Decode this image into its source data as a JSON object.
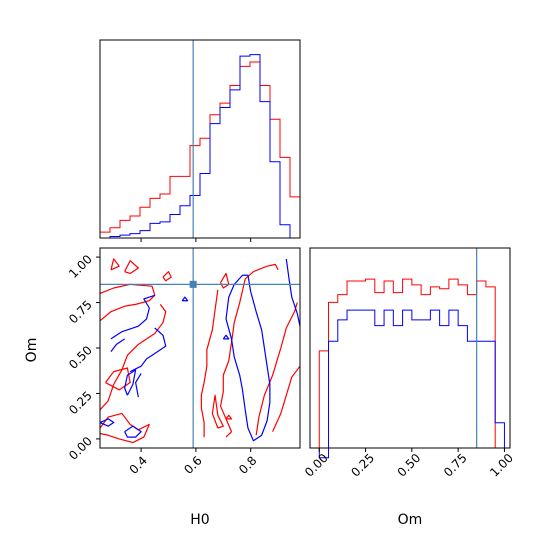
{
  "chart_data": {
    "type": "corner",
    "parameters": [
      "H0",
      "Om"
    ],
    "truth": {
      "H0": 0.59,
      "Om": 0.85
    },
    "colors": {
      "red": "#ff0000",
      "blue": "#0000ff",
      "truth": "#4682b4",
      "axis": "#000000"
    },
    "panels": {
      "h0_hist": {
        "xlim": [
          0.25,
          0.98
        ],
        "bin_edges": [
          0.25,
          0.2865,
          0.323,
          0.3595,
          0.396,
          0.4325,
          0.469,
          0.5055,
          0.542,
          0.5785,
          0.615,
          0.6515,
          0.688,
          0.7245,
          0.761,
          0.7975,
          0.834,
          0.8705,
          0.907,
          0.9435,
          0.98
        ],
        "series": [
          {
            "color": "red",
            "counts": [
              4,
              7,
              12,
              15,
              21,
              27,
              30,
              42,
              42,
              63,
              68,
              84,
              92,
              104,
              117,
              120,
              104,
              81,
              55,
              28
            ]
          },
          {
            "color": "blue",
            "counts": [
              0,
              1,
              2,
              3,
              5,
              10,
              11,
              16,
              22,
              29,
              44,
              78,
              89,
              101,
              124,
              125,
              93,
              52,
              9,
              0
            ]
          }
        ]
      },
      "om_hist": {
        "xlim": [
          -0.05,
          1.03
        ],
        "bin_edges": [
          0.0,
          0.05,
          0.1,
          0.15,
          0.2,
          0.25,
          0.3,
          0.35,
          0.4,
          0.45,
          0.5,
          0.55,
          0.6,
          0.65,
          0.7,
          0.75,
          0.8,
          0.85,
          0.9,
          0.95,
          1.0
        ],
        "series": [
          {
            "color": "red",
            "counts": [
              50,
              75,
              79,
              86,
              86,
              87,
              80,
              86,
              80,
              87,
              84,
              79,
              83,
              82,
              87,
              84,
              79,
              86,
              83,
              0
            ]
          },
          {
            "color": "blue",
            "counts": [
              -5,
              55,
              66,
              71,
              71,
              71,
              63,
              71,
              63,
              71,
              66,
              66,
              71,
              63,
              71,
              63,
              55,
              55,
              55,
              13
            ]
          }
        ]
      },
      "joint": {
        "xlim": [
          0.25,
          0.98
        ],
        "ylim": [
          -0.05,
          1.05
        ],
        "red_contours": [
          [
            [
              0.25,
              0.65
            ],
            [
              0.29,
              0.7
            ],
            [
              0.34,
              0.73
            ],
            [
              0.38,
              0.74
            ],
            [
              0.43,
              0.76
            ],
            [
              0.45,
              0.79
            ],
            [
              0.44,
              0.84
            ],
            [
              0.36,
              0.85
            ],
            [
              0.3,
              0.83
            ],
            [
              0.25,
              0.8
            ]
          ],
          [
            [
              0.25,
              0.16
            ],
            [
              0.28,
              0.21
            ],
            [
              0.3,
              0.3
            ],
            [
              0.33,
              0.38
            ],
            [
              0.35,
              0.46
            ],
            [
              0.39,
              0.52
            ],
            [
              0.45,
              0.58
            ],
            [
              0.48,
              0.64
            ],
            [
              0.49,
              0.7
            ],
            [
              0.47,
              0.74
            ]
          ],
          [
            [
              0.25,
              0.06
            ],
            [
              0.28,
              0.12
            ],
            [
              0.33,
              0.14
            ],
            [
              0.36,
              0.08
            ],
            [
              0.39,
              0.05
            ],
            [
              0.43,
              0.08
            ],
            [
              0.41,
              0.01
            ],
            [
              0.37,
              -0.02
            ],
            [
              0.32,
              0.0
            ],
            [
              0.28,
              0.02
            ],
            [
              0.25,
              0.03
            ]
          ],
          [
            [
              0.27,
              0.31
            ],
            [
              0.3,
              0.37
            ],
            [
              0.35,
              0.39
            ],
            [
              0.36,
              0.31
            ],
            [
              0.32,
              0.27
            ],
            [
              0.27,
              0.31
            ]
          ],
          [
            [
              0.29,
              0.93
            ],
            [
              0.3,
              0.99
            ],
            [
              0.32,
              0.95
            ],
            [
              0.29,
              0.93
            ]
          ],
          [
            [
              0.34,
              0.92
            ],
            [
              0.36,
              0.98
            ],
            [
              0.39,
              0.94
            ],
            [
              0.36,
              0.91
            ],
            [
              0.34,
              0.92
            ]
          ],
          [
            [
              0.48,
              0.89
            ],
            [
              0.5,
              0.92
            ],
            [
              0.51,
              0.89
            ],
            [
              0.49,
              0.87
            ],
            [
              0.48,
              0.89
            ]
          ],
          [
            [
              0.69,
              0.86
            ],
            [
              0.71,
              0.91
            ],
            [
              0.72,
              0.85
            ],
            [
              0.7,
              0.83
            ],
            [
              0.69,
              0.86
            ]
          ],
          [
            [
              0.71,
              0.01
            ],
            [
              0.73,
              0.04
            ],
            [
              0.71,
              0.11
            ],
            [
              0.69,
              0.18
            ],
            [
              0.7,
              0.26
            ],
            [
              0.7,
              0.35
            ],
            [
              0.72,
              0.43
            ],
            [
              0.73,
              0.53
            ],
            [
              0.74,
              0.64
            ],
            [
              0.76,
              0.75
            ],
            [
              0.78,
              0.88
            ],
            [
              0.81,
              0.92
            ],
            [
              0.86,
              0.95
            ],
            [
              0.89,
              0.96
            ],
            [
              0.9,
              0.93
            ]
          ],
          [
            [
              0.63,
              0.01
            ],
            [
              0.63,
              0.09
            ],
            [
              0.62,
              0.17
            ],
            [
              0.62,
              0.24
            ],
            [
              0.63,
              0.31
            ],
            [
              0.64,
              0.4
            ],
            [
              0.64,
              0.49
            ],
            [
              0.66,
              0.6
            ],
            [
              0.67,
              0.71
            ],
            [
              0.68,
              0.82
            ]
          ],
          [
            [
              0.68,
              0.06
            ],
            [
              0.66,
              0.14
            ],
            [
              0.67,
              0.24
            ],
            [
              0.68,
              0.13
            ],
            [
              0.7,
              0.07
            ],
            [
              0.68,
              0.06
            ]
          ],
          [
            [
              0.82,
              0.02
            ],
            [
              0.83,
              0.12
            ],
            [
              0.85,
              0.24
            ],
            [
              0.88,
              0.35
            ],
            [
              0.91,
              0.5
            ],
            [
              0.93,
              0.61
            ],
            [
              0.96,
              0.7
            ],
            [
              0.97,
              0.75
            ]
          ],
          [
            [
              0.88,
              0.04
            ],
            [
              0.91,
              0.14
            ],
            [
              0.93,
              0.24
            ],
            [
              0.95,
              0.34
            ],
            [
              0.98,
              0.4
            ]
          ],
          [
            [
              0.71,
              0.11
            ],
            [
              0.72,
              0.13
            ],
            [
              0.73,
              0.11
            ],
            [
              0.71,
              0.11
            ]
          ]
        ],
        "blue_contours": [
          [
            [
              0.29,
              0.55
            ],
            [
              0.33,
              0.59
            ],
            [
              0.39,
              0.62
            ],
            [
              0.42,
              0.66
            ],
            [
              0.43,
              0.72
            ],
            [
              0.41,
              0.77
            ],
            [
              0.45,
              0.79
            ]
          ],
          [
            [
              0.29,
              0.48
            ],
            [
              0.31,
              0.52
            ],
            [
              0.34,
              0.55
            ]
          ],
          [
            [
              0.36,
              0.37
            ],
            [
              0.4,
              0.4
            ],
            [
              0.42,
              0.44
            ],
            [
              0.45,
              0.47
            ],
            [
              0.49,
              0.51
            ],
            [
              0.48,
              0.57
            ],
            [
              0.45,
              0.61
            ]
          ],
          [
            [
              0.39,
              0.23
            ],
            [
              0.38,
              0.31
            ],
            [
              0.4,
              0.36
            ]
          ],
          [
            [
              0.35,
              0.24
            ],
            [
              0.37,
              0.3
            ],
            [
              0.38,
              0.38
            ],
            [
              0.35,
              0.35
            ],
            [
              0.34,
              0.28
            ],
            [
              0.35,
              0.24
            ]
          ],
          [
            [
              0.25,
              0.09
            ],
            [
              0.28,
              0.11
            ],
            [
              0.3,
              0.09
            ],
            [
              0.28,
              0.07
            ],
            [
              0.25,
              0.09
            ]
          ],
          [
            [
              0.34,
              0.04
            ],
            [
              0.37,
              0.07
            ],
            [
              0.4,
              0.04
            ],
            [
              0.38,
              0.01
            ],
            [
              0.35,
              0.01
            ],
            [
              0.34,
              0.04
            ]
          ],
          [
            [
              0.55,
              0.76
            ],
            [
              0.56,
              0.78
            ],
            [
              0.57,
              0.76
            ],
            [
              0.55,
              0.76
            ]
          ],
          [
            [
              0.79,
              0.06
            ],
            [
              0.78,
              0.16
            ],
            [
              0.77,
              0.27
            ],
            [
              0.76,
              0.35
            ],
            [
              0.74,
              0.45
            ],
            [
              0.73,
              0.55
            ],
            [
              0.71,
              0.66
            ],
            [
              0.72,
              0.78
            ],
            [
              0.74,
              0.85
            ],
            [
              0.77,
              0.9
            ],
            [
              0.79,
              0.9
            ],
            [
              0.8,
              0.81
            ],
            [
              0.82,
              0.7
            ],
            [
              0.84,
              0.6
            ],
            [
              0.85,
              0.5
            ],
            [
              0.86,
              0.4
            ],
            [
              0.87,
              0.3
            ],
            [
              0.87,
              0.2
            ],
            [
              0.86,
              0.1
            ],
            [
              0.84,
              0.02
            ],
            [
              0.81,
              -0.01
            ],
            [
              0.79,
              0.06
            ]
          ],
          [
            [
              0.93,
              0.99
            ],
            [
              0.94,
              0.88
            ],
            [
              0.95,
              0.78
            ],
            [
              0.97,
              0.69
            ],
            [
              0.98,
              0.62
            ]
          ],
          [
            [
              0.7,
              0.55
            ],
            [
              0.71,
              0.57
            ],
            [
              0.72,
              0.55
            ],
            [
              0.7,
              0.55
            ]
          ]
        ]
      }
    },
    "ticks": {
      "h0": [
        0.4,
        0.6,
        0.8
      ],
      "om_x": [
        0.0,
        0.25,
        0.5,
        0.75,
        1.0
      ],
      "om_y": [
        0.0,
        0.25,
        0.5,
        0.75,
        1.0
      ]
    },
    "tick_labels": {
      "h0": [
        "0.4",
        "0.6",
        "0.8"
      ],
      "om_x": [
        "0.00",
        "0.25",
        "0.50",
        "0.75",
        "1.00"
      ],
      "om_y": [
        "0.00",
        "0.25",
        "0.50",
        "0.75",
        "1.00"
      ]
    },
    "labels": {
      "joint_xlabel": "H0",
      "joint_ylabel": "Om",
      "om_hist_xlabel": "Om"
    }
  }
}
